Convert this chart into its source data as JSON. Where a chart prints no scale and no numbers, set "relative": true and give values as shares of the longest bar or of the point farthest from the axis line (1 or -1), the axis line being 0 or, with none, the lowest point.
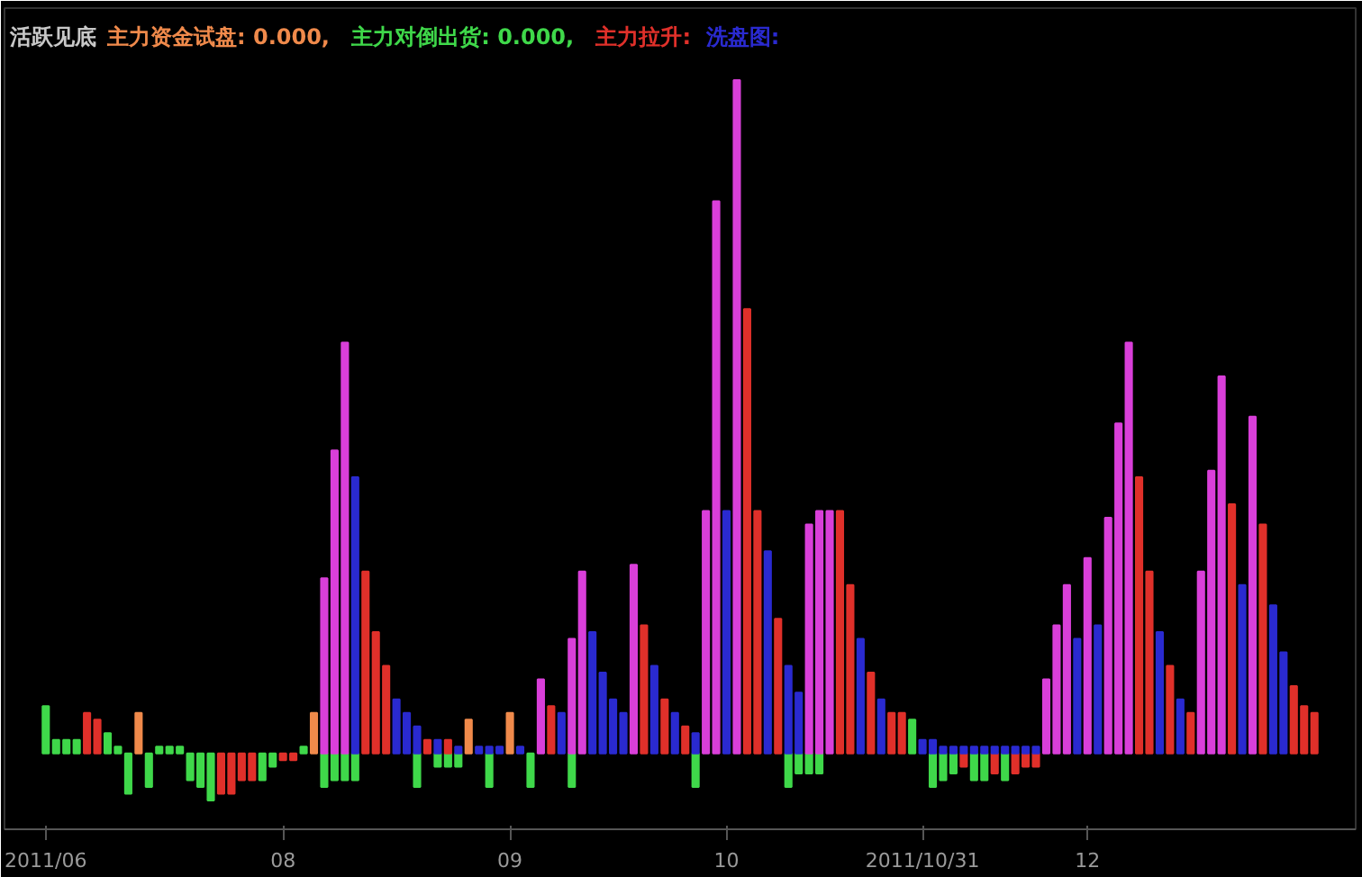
{
  "chart_data": {
    "type": "bar",
    "title": "活跃见底",
    "relative": true,
    "legend": "top left",
    "categories": [
      "2011/06",
      null,
      null,
      null,
      null,
      null,
      null,
      null,
      null,
      null,
      null,
      null,
      null,
      null,
      null,
      null,
      null,
      null,
      null,
      null,
      null,
      null,
      null,
      "08",
      null,
      null,
      null,
      null,
      null,
      null,
      null,
      null,
      null,
      null,
      null,
      null,
      null,
      null,
      null,
      null,
      null,
      null,
      null,
      null,
      null,
      "09",
      null,
      null,
      null,
      null,
      null,
      null,
      null,
      null,
      null,
      null,
      null,
      null,
      null,
      null,
      null,
      null,
      null,
      null,
      null,
      null,
      "10",
      null,
      null,
      null,
      null,
      null,
      null,
      null,
      null,
      null,
      null,
      null,
      null,
      null,
      null,
      null,
      null,
      null,
      null,
      "2011/10/31",
      null,
      null,
      null,
      null,
      null,
      null,
      null,
      null,
      null,
      null,
      null,
      null,
      null,
      null,
      null,
      "12",
      null,
      null,
      null,
      null,
      null,
      null,
      null,
      null,
      null,
      null,
      null,
      null,
      null,
      null,
      null,
      null,
      null,
      null,
      null,
      null,
      null,
      null
    ],
    "series": [
      {
        "name": "主力资金试盘: 0.000,",
        "color": "#f08a4b",
        "values": [
          null,
          null,
          null,
          null,
          null,
          null,
          null,
          null,
          null,
          0.06,
          null,
          null,
          null,
          null,
          null,
          null,
          null,
          null,
          null,
          null,
          null,
          null,
          null,
          null,
          null,
          null,
          0.06,
          null,
          null,
          null,
          null,
          null,
          null,
          null,
          null,
          null,
          null,
          null,
          null,
          null,
          null,
          0.05,
          null,
          null,
          null,
          0.06,
          null,
          null,
          null,
          null,
          null,
          null,
          null,
          null,
          null,
          null,
          null,
          null,
          null,
          null,
          null,
          null,
          null,
          null,
          null,
          null,
          null,
          null,
          null,
          null,
          null,
          null,
          null,
          null,
          null,
          null,
          null,
          null,
          null,
          null,
          null,
          null,
          null,
          null,
          null,
          null,
          null,
          null,
          null,
          null,
          null,
          null,
          null,
          null,
          null,
          null,
          null,
          null,
          null,
          null,
          null,
          null,
          null,
          null,
          null,
          null,
          null,
          null,
          null,
          null,
          null,
          null,
          null,
          null,
          null,
          null,
          null,
          null,
          null,
          null,
          null,
          null,
          null,
          null
        ]
      },
      {
        "name": "主力对倒出货: 0.000,",
        "color": "#3fd84a",
        "values": [
          0.07,
          0.02,
          0.02,
          0.02,
          null,
          null,
          0.03,
          0.01,
          -0.06,
          null,
          -0.05,
          0.01,
          0.01,
          0.01,
          -0.04,
          -0.05,
          -0.07,
          null,
          null,
          null,
          null,
          -0.04,
          -0.02,
          null,
          null,
          0.01,
          null,
          -0.05,
          -0.04,
          -0.04,
          -0.04,
          null,
          null,
          null,
          null,
          null,
          -0.05,
          null,
          -0.02,
          -0.02,
          -0.02,
          null,
          null,
          -0.05,
          null,
          null,
          null,
          -0.05,
          null,
          null,
          null,
          -0.05,
          null,
          null,
          null,
          null,
          null,
          null,
          null,
          null,
          null,
          null,
          null,
          -0.05,
          null,
          null,
          null,
          null,
          null,
          null,
          null,
          null,
          -0.05,
          -0.03,
          -0.03,
          -0.03,
          null,
          null,
          null,
          null,
          null,
          null,
          null,
          null,
          0.05,
          null,
          -0.05,
          -0.04,
          -0.03,
          null,
          -0.04,
          -0.04,
          null,
          -0.04,
          null,
          null,
          null,
          null,
          null,
          null,
          null,
          null,
          null,
          null,
          null,
          null,
          null,
          null,
          null,
          null,
          null,
          null,
          null,
          null,
          null,
          null,
          null,
          null,
          null,
          null,
          null,
          null,
          null,
          null
        ]
      },
      {
        "name": "主力拉升:",
        "color": "#e0302a",
        "values": [
          null,
          null,
          null,
          null,
          0.06,
          0.05,
          null,
          null,
          null,
          null,
          null,
          null,
          null,
          null,
          null,
          null,
          null,
          -0.06,
          -0.06,
          -0.04,
          -0.04,
          null,
          null,
          -0.01,
          -0.01,
          null,
          null,
          null,
          null,
          null,
          null,
          0.27,
          0.18,
          0.13,
          null,
          null,
          null,
          0.02,
          null,
          0.02,
          null,
          null,
          null,
          null,
          null,
          null,
          null,
          null,
          null,
          0.07,
          null,
          null,
          null,
          null,
          null,
          null,
          null,
          null,
          0.19,
          null,
          0.08,
          null,
          0.04,
          null,
          null,
          null,
          null,
          null,
          0.66,
          0.36,
          null,
          0.2,
          null,
          null,
          null,
          null,
          null,
          0.36,
          0.25,
          null,
          0.12,
          null,
          0.06,
          0.06,
          null,
          null,
          null,
          null,
          null,
          -0.02,
          null,
          null,
          -0.03,
          null,
          -0.03,
          -0.02,
          -0.02,
          null,
          null,
          null,
          null,
          null,
          null,
          null,
          null,
          null,
          0.41,
          0.27,
          null,
          0.13,
          null,
          0.06,
          null,
          null,
          null,
          0.37,
          null,
          null,
          0.34,
          null,
          null,
          0.1,
          0.07,
          0.06
        ]
      },
      {
        "name": "洗盘图:",
        "color": "#2a2ad0",
        "values": [
          null,
          null,
          null,
          null,
          null,
          null,
          null,
          null,
          null,
          null,
          null,
          null,
          null,
          null,
          null,
          null,
          null,
          null,
          null,
          null,
          null,
          null,
          null,
          null,
          null,
          null,
          null,
          null,
          null,
          null,
          0.41,
          null,
          null,
          null,
          0.08,
          0.06,
          0.04,
          null,
          0.02,
          null,
          0.01,
          null,
          0.01,
          0.01,
          0.01,
          null,
          0.01,
          null,
          null,
          null,
          0.06,
          null,
          null,
          0.18,
          0.12,
          0.08,
          0.06,
          null,
          null,
          0.13,
          null,
          0.06,
          null,
          0.03,
          null,
          null,
          0.36,
          null,
          null,
          null,
          0.3,
          null,
          0.13,
          0.09,
          null,
          null,
          null,
          null,
          null,
          0.17,
          null,
          0.08,
          null,
          null,
          null,
          0.02,
          0.02,
          0.01,
          0.01,
          0.01,
          0.01,
          0.01,
          0.01,
          0.01,
          0.01,
          0.01,
          0.01,
          null,
          null,
          null,
          0.17,
          null,
          0.19,
          null,
          null,
          null,
          null,
          null,
          0.18,
          null,
          0.08,
          null,
          null,
          null,
          null,
          null,
          0.25,
          null,
          null,
          0.22,
          0.15,
          null,
          null,
          null
        ]
      },
      {
        "color": "#d93fd9",
        "values": [
          null,
          null,
          null,
          null,
          null,
          null,
          null,
          null,
          null,
          null,
          null,
          null,
          null,
          null,
          null,
          null,
          null,
          null,
          null,
          null,
          null,
          null,
          null,
          null,
          null,
          null,
          null,
          0.26,
          0.45,
          0.61,
          null,
          null,
          null,
          null,
          null,
          null,
          null,
          null,
          null,
          null,
          null,
          null,
          null,
          null,
          null,
          null,
          null,
          null,
          0.11,
          null,
          null,
          0.17,
          0.27,
          null,
          null,
          null,
          null,
          0.28,
          null,
          null,
          null,
          null,
          null,
          null,
          0.36,
          0.82,
          null,
          1,
          null,
          null,
          null,
          null,
          null,
          null,
          0.34,
          0.36,
          0.36,
          null,
          null,
          null,
          null,
          null,
          null,
          null,
          null,
          null,
          null,
          null,
          null,
          null,
          null,
          null,
          null,
          null,
          null,
          null,
          null,
          0.11,
          0.19,
          0.25,
          null,
          0.29,
          null,
          0.35,
          0.49,
          0.61,
          null,
          null,
          null,
          null,
          null,
          null,
          0.27,
          0.42,
          0.56,
          null,
          null,
          0.5,
          null,
          null,
          null,
          null,
          null,
          null
        ]
      }
    ]
  }
}
